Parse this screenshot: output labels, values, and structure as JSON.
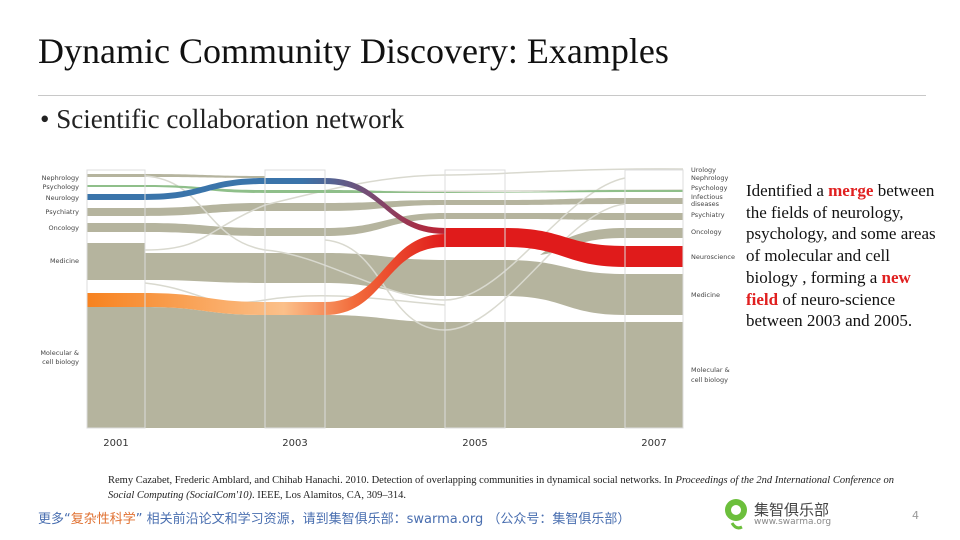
{
  "slide": {
    "title": "Dynamic Community Discovery: Examples",
    "bullet": "• Scientific collaboration network",
    "page_number": "4"
  },
  "diagram": {
    "type": "alluvial",
    "years": [
      "2001",
      "2003",
      "2005",
      "2007"
    ],
    "left_labels": [
      "Nephrology",
      "Psychology",
      "Neurology",
      "Psychiatry",
      "Oncology",
      "Medicine",
      "Molecular &",
      "cell biology"
    ],
    "right_labels": [
      "Urology",
      "Nephrology",
      "Psychology",
      "Infectious",
      "diseases",
      "Psychiatry",
      "Oncology",
      "Neuroscience",
      "Medicine",
      "Molecular &",
      "cell biology"
    ],
    "colors": {
      "neutral": "#b5b49e",
      "neurology": "#3a74aa",
      "psychology": "#8fbf8a",
      "molecular_flow": "#f7821f",
      "neuroscience": "#e01b1b"
    }
  },
  "note": {
    "p1": "Identified a ",
    "merge": "merge",
    "p2": " between the fields of neurology, psychology, and some areas of molecular and cell biology , forming a ",
    "new_field": "new field",
    "p3": " of neuro-science between 2003 and 2005."
  },
  "citation": {
    "authors": "Remy Cazabet, Frederic Amblard, and Chihab Hanachi. 2010. Detection of overlapping communities in dynamical social networks. In ",
    "venue": "Proceedings of the 2nd International Conference on Social Computing (SocialCom'10)",
    "rest": ". IEEE, Los Alamitos, CA, 309–314."
  },
  "footer": {
    "prefix": "更多“",
    "highlight": "复杂性科学",
    "suffix": "” 相关前沿论文和学习资源，请到集智俱乐部：swarma.org （公众号：集智俱乐部）",
    "logo_text": "集智俱乐部",
    "logo_url": "www.swarma.org"
  }
}
